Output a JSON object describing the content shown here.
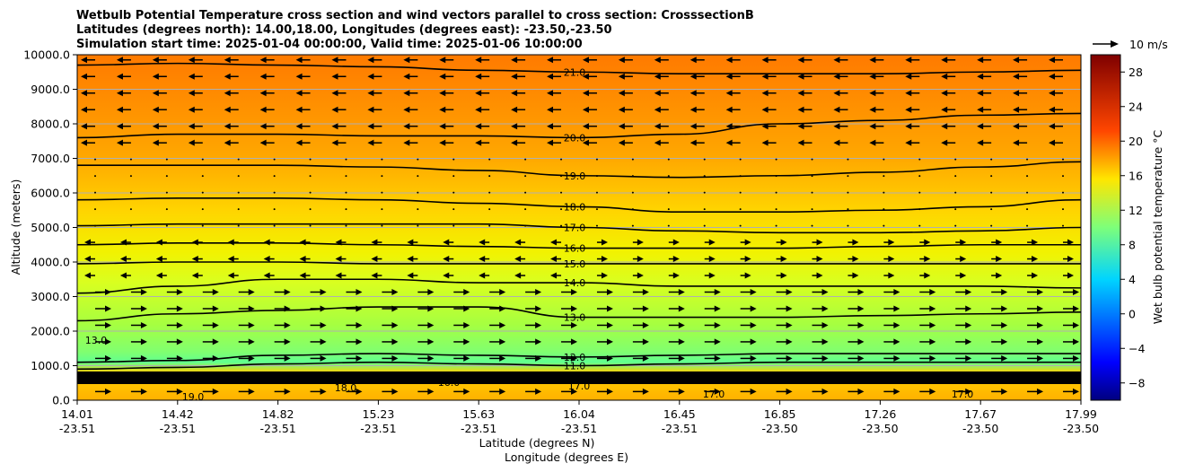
{
  "chart_data": {
    "type": "heatmap",
    "title_lines": [
      "Wetbulb Potential Temperature cross section and wind vectors parallel to cross section: CrosssectionB",
      "Latitudes (degrees north): 14.00,18.00, Longitudes (degrees east): -23.50,-23.50",
      "Simulation start time: 2025-01-04 00:00:00, Valid time: 2025-01-06 10:00:00"
    ],
    "ylabel": "Altitude (meters)",
    "xlabel": "Latitude (degrees N)",
    "xlabel2": "Longitude (degrees E)",
    "ylim": [
      0,
      10000
    ],
    "y_ticks": [
      "0.0",
      "1000.0",
      "2000.0",
      "3000.0",
      "4000.0",
      "5000.0",
      "6000.0",
      "7000.0",
      "8000.0",
      "9000.0",
      "10000.0"
    ],
    "x_ticks": [
      {
        "lat": "14.01",
        "lon": "-23.51"
      },
      {
        "lat": "14.42",
        "lon": "-23.51"
      },
      {
        "lat": "14.82",
        "lon": "-23.51"
      },
      {
        "lat": "15.23",
        "lon": "-23.51"
      },
      {
        "lat": "15.63",
        "lon": "-23.51"
      },
      {
        "lat": "16.04",
        "lon": "-23.51"
      },
      {
        "lat": "16.45",
        "lon": "-23.51"
      },
      {
        "lat": "16.85",
        "lon": "-23.50"
      },
      {
        "lat": "17.26",
        "lon": "-23.50"
      },
      {
        "lat": "17.67",
        "lon": "-23.50"
      },
      {
        "lat": "17.99",
        "lon": "-23.50"
      }
    ],
    "grid": "horizontal",
    "colorbar": {
      "label": "Wet bulb potential temperature $^\\circ$C",
      "range": [
        -10,
        30
      ],
      "ticks": [
        "−8",
        "−4",
        "0",
        "4",
        "8",
        "12",
        "16",
        "20",
        "24",
        "28"
      ],
      "colormap": "jet"
    },
    "contours": [
      {
        "level": 21.0,
        "label": "21.0",
        "altitudes": [
          9700,
          9750,
          9700,
          9650,
          9550,
          9500,
          9450,
          9450,
          9450,
          9500,
          9550
        ]
      },
      {
        "level": 20.0,
        "label": "20.0",
        "altitudes": [
          7600,
          7700,
          7700,
          7650,
          7650,
          7600,
          7700,
          8000,
          8100,
          8250,
          8300
        ]
      },
      {
        "level": 19.0,
        "label": "19.0",
        "altitudes": [
          6800,
          6800,
          6800,
          6750,
          6650,
          6500,
          6450,
          6500,
          6600,
          6750,
          6900
        ]
      },
      {
        "level": 18.0,
        "label": "18.0",
        "altitudes": [
          5800,
          5850,
          5850,
          5800,
          5700,
          5600,
          5450,
          5450,
          5500,
          5600,
          5800
        ]
      },
      {
        "level": 17.0,
        "label": "17.0",
        "altitudes": [
          5050,
          5100,
          5100,
          5100,
          5100,
          5000,
          4900,
          4850,
          4850,
          4900,
          5000
        ]
      },
      {
        "level": 16.0,
        "label": "16.0",
        "altitudes": [
          4500,
          4550,
          4550,
          4500,
          4450,
          4400,
          4400,
          4400,
          4450,
          4500,
          4500
        ]
      },
      {
        "level": 15.0,
        "label": "15.0",
        "altitudes": [
          3950,
          4000,
          4000,
          3950,
          3950,
          3950,
          3950,
          3950,
          3950,
          3950,
          3950
        ]
      },
      {
        "level": 14.0,
        "label": "14.0",
        "altitudes": [
          3100,
          3300,
          3500,
          3500,
          3400,
          3400,
          3300,
          3300,
          3300,
          3300,
          3250
        ]
      },
      {
        "level": 13.0,
        "label": "13.0",
        "altitudes": [
          2300,
          2500,
          2600,
          2700,
          2700,
          2400,
          2400,
          2400,
          2450,
          2500,
          2550
        ]
      },
      {
        "level": 12.0,
        "label": "12.0",
        "altitudes": [
          1100,
          1150,
          1300,
          1350,
          1300,
          1250,
          1300,
          1350,
          1350,
          1350,
          1350
        ]
      },
      {
        "level": 11.0,
        "label": "11.0",
        "altitudes": [
          900,
          950,
          1050,
          1100,
          1050,
          1000,
          1050,
          1100,
          1100,
          1100,
          1100
        ]
      }
    ],
    "contour_labels_extra": [
      "17.0",
      "17.0",
      "17.0",
      "18.0",
      "19.0",
      "16.0",
      "13.0"
    ],
    "wind_key": {
      "label": "10 m/s",
      "speed_ms": 10
    },
    "wind_direction_by_layer": [
      {
        "altitude_range": [
          0,
          1200
        ],
        "direction": "positive"
      },
      {
        "altitude_range": [
          1200,
          3200
        ],
        "direction": "positive"
      },
      {
        "altitude_range": [
          3200,
          5000
        ],
        "direction": "mixed"
      },
      {
        "altitude_range": [
          5000,
          7200
        ],
        "direction": "weak"
      },
      {
        "altitude_range": [
          7200,
          10000
        ],
        "direction": "negative"
      }
    ]
  }
}
